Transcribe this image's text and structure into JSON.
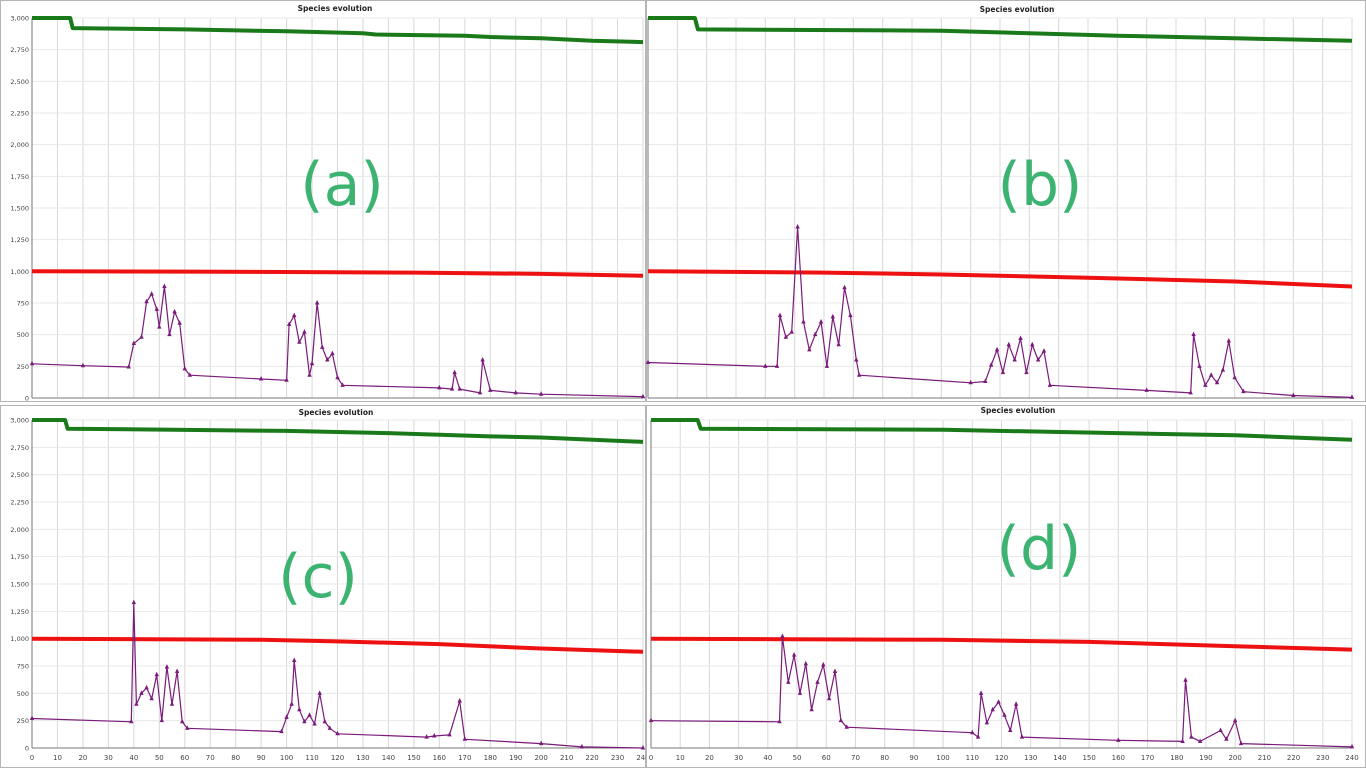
{
  "chart_data": [
    {
      "id": "a",
      "type": "line",
      "title": "Species evolution",
      "panel_label": "(a)",
      "xlim": [
        0,
        240
      ],
      "ylim": [
        0,
        3000
      ],
      "yticks": [
        0,
        250,
        500,
        750,
        1000,
        1250,
        1500,
        1750,
        2000,
        2250,
        2500,
        2750,
        3000
      ],
      "ytick_labels": [
        "0",
        "250",
        "500",
        "750",
        "1,000",
        "1,250",
        "1,500",
        "1,750",
        "2,000",
        "2,250",
        "2,500",
        "2,750",
        "3,000"
      ],
      "xticks": [
        0,
        10,
        20,
        30,
        40,
        50,
        60,
        70,
        80,
        90,
        100,
        110,
        120,
        130,
        140,
        150,
        160,
        170,
        180,
        190,
        200,
        210,
        220,
        230,
        240
      ],
      "grid": true,
      "series": [
        {
          "color": "#1a7a1a",
          "points": [
            [
              0,
              3000
            ],
            [
              15,
              3000
            ],
            [
              16,
              2920
            ],
            [
              60,
              2910
            ],
            [
              100,
              2895
            ],
            [
              130,
              2880
            ],
            [
              135,
              2870
            ],
            [
              170,
              2860
            ],
            [
              180,
              2850
            ],
            [
              200,
              2840
            ],
            [
              220,
              2820
            ],
            [
              240,
              2810
            ]
          ]
        },
        {
          "color": "#ee1111",
          "points": [
            [
              0,
              1000
            ],
            [
              60,
              998
            ],
            [
              100,
              995
            ],
            [
              150,
              990
            ],
            [
              200,
              980
            ],
            [
              240,
              965
            ]
          ]
        },
        {
          "color": "#7a1a7a",
          "points": [
            [
              0,
              270
            ],
            [
              20,
              255
            ],
            [
              38,
              245
            ],
            [
              40,
              430
            ],
            [
              43,
              480
            ],
            [
              45,
              760
            ],
            [
              47,
              820
            ],
            [
              49,
              700
            ],
            [
              50,
              560
            ],
            [
              52,
              880
            ],
            [
              54,
              500
            ],
            [
              56,
              680
            ],
            [
              58,
              590
            ],
            [
              60,
              230
            ],
            [
              62,
              180
            ],
            [
              90,
              150
            ],
            [
              100,
              140
            ],
            [
              101,
              580
            ],
            [
              103,
              650
            ],
            [
              105,
              440
            ],
            [
              107,
              520
            ],
            [
              109,
              180
            ],
            [
              110,
              270
            ],
            [
              112,
              750
            ],
            [
              114,
              400
            ],
            [
              116,
              300
            ],
            [
              118,
              350
            ],
            [
              120,
              160
            ],
            [
              122,
              100
            ],
            [
              160,
              80
            ],
            [
              165,
              70
            ],
            [
              166,
              200
            ],
            [
              168,
              70
            ],
            [
              176,
              40
            ],
            [
              177,
              300
            ],
            [
              180,
              60
            ],
            [
              190,
              40
            ],
            [
              200,
              30
            ],
            [
              240,
              10
            ]
          ]
        }
      ]
    },
    {
      "id": "b",
      "type": "line",
      "title": "Species evolution",
      "panel_label": "(b)",
      "xlim": [
        0,
        240
      ],
      "ylim": [
        0,
        3000
      ],
      "grid": true,
      "series": [
        {
          "color": "#1a7a1a",
          "points": [
            [
              0,
              3000
            ],
            [
              16,
              3000
            ],
            [
              17,
              2910
            ],
            [
              100,
              2900
            ],
            [
              130,
              2880
            ],
            [
              160,
              2860
            ],
            [
              200,
              2840
            ],
            [
              240,
              2820
            ]
          ]
        },
        {
          "color": "#ee1111",
          "points": [
            [
              0,
              1000
            ],
            [
              60,
              990
            ],
            [
              100,
              975
            ],
            [
              150,
              950
            ],
            [
              200,
              920
            ],
            [
              240,
              880
            ]
          ]
        },
        {
          "color": "#7a1a7a",
          "points": [
            [
              0,
              280
            ],
            [
              40,
              250
            ],
            [
              44,
              250
            ],
            [
              45,
              650
            ],
            [
              47,
              480
            ],
            [
              49,
              520
            ],
            [
              51,
              1350
            ],
            [
              53,
              600
            ],
            [
              55,
              380
            ],
            [
              57,
              500
            ],
            [
              59,
              600
            ],
            [
              61,
              250
            ],
            [
              63,
              640
            ],
            [
              65,
              420
            ],
            [
              67,
              870
            ],
            [
              69,
              650
            ],
            [
              71,
              300
            ],
            [
              72,
              180
            ],
            [
              110,
              120
            ],
            [
              115,
              130
            ],
            [
              117,
              260
            ],
            [
              119,
              380
            ],
            [
              121,
              200
            ],
            [
              123,
              420
            ],
            [
              125,
              300
            ],
            [
              127,
              470
            ],
            [
              129,
              200
            ],
            [
              131,
              420
            ],
            [
              133,
              300
            ],
            [
              135,
              370
            ],
            [
              137,
              100
            ],
            [
              170,
              60
            ],
            [
              185,
              40
            ],
            [
              186,
              500
            ],
            [
              188,
              250
            ],
            [
              190,
              100
            ],
            [
              192,
              180
            ],
            [
              194,
              120
            ],
            [
              196,
              220
            ],
            [
              198,
              450
            ],
            [
              200,
              160
            ],
            [
              203,
              50
            ],
            [
              220,
              20
            ],
            [
              240,
              5
            ]
          ]
        }
      ]
    },
    {
      "id": "c",
      "type": "line",
      "title": "Species evolution",
      "panel_label": "(c)",
      "xlim": [
        0,
        240
      ],
      "ylim": [
        0,
        3000
      ],
      "yticks": [
        0,
        250,
        500,
        750,
        1000,
        1250,
        1500,
        1750,
        2000,
        2250,
        2500,
        2750,
        3000
      ],
      "ytick_labels": [
        "0",
        "250",
        "500",
        "750",
        "1,000",
        "1,250",
        "1,500",
        "1,750",
        "2,000",
        "2,250",
        "2,500",
        "2,750",
        "3,000"
      ],
      "xticks": [
        0,
        10,
        20,
        30,
        40,
        50,
        60,
        70,
        80,
        90,
        100,
        110,
        120,
        130,
        140,
        150,
        160,
        170,
        180,
        190,
        200,
        210,
        220,
        230,
        240
      ],
      "xtick_labels": [
        "0",
        "10",
        "20",
        "30",
        "40",
        "50",
        "60",
        "70",
        "80",
        "90",
        "100",
        "110",
        "120",
        "130",
        "140",
        "150",
        "160",
        "170",
        "180",
        "190",
        "200",
        "210",
        "220",
        "230",
        "240"
      ],
      "grid": true,
      "series": [
        {
          "color": "#1a7a1a",
          "points": [
            [
              0,
              3000
            ],
            [
              13,
              3000
            ],
            [
              14,
              2920
            ],
            [
              100,
              2900
            ],
            [
              140,
              2880
            ],
            [
              180,
              2850
            ],
            [
              200,
              2840
            ],
            [
              240,
              2800
            ]
          ]
        },
        {
          "color": "#ee1111",
          "points": [
            [
              0,
              1000
            ],
            [
              90,
              990
            ],
            [
              120,
              975
            ],
            [
              160,
              950
            ],
            [
              200,
              910
            ],
            [
              240,
              880
            ]
          ]
        },
        {
          "color": "#7a1a7a",
          "points": [
            [
              0,
              270
            ],
            [
              39,
              240
            ],
            [
              40,
              1330
            ],
            [
              41,
              400
            ],
            [
              43,
              500
            ],
            [
              45,
              550
            ],
            [
              47,
              450
            ],
            [
              49,
              670
            ],
            [
              51,
              250
            ],
            [
              53,
              740
            ],
            [
              55,
              400
            ],
            [
              57,
              700
            ],
            [
              59,
              240
            ],
            [
              61,
              180
            ],
            [
              98,
              150
            ],
            [
              100,
              280
            ],
            [
              102,
              400
            ],
            [
              103,
              800
            ],
            [
              105,
              350
            ],
            [
              107,
              240
            ],
            [
              109,
              300
            ],
            [
              111,
              220
            ],
            [
              113,
              500
            ],
            [
              115,
              240
            ],
            [
              117,
              180
            ],
            [
              120,
              130
            ],
            [
              155,
              100
            ],
            [
              158,
              110
            ],
            [
              164,
              120
            ],
            [
              168,
              430
            ],
            [
              170,
              80
            ],
            [
              200,
              40
            ],
            [
              216,
              10
            ],
            [
              240,
              0
            ]
          ]
        }
      ]
    },
    {
      "id": "d",
      "type": "line",
      "title": "Species evolution",
      "panel_label": "(d)",
      "xlim": [
        0,
        240
      ],
      "ylim": [
        0,
        3000
      ],
      "xticks": [
        0,
        10,
        20,
        30,
        40,
        50,
        60,
        70,
        80,
        90,
        100,
        110,
        120,
        130,
        140,
        150,
        160,
        170,
        180,
        190,
        200,
        210,
        220,
        230,
        240
      ],
      "xtick_labels": [
        "0",
        "10",
        "20",
        "30",
        "40",
        "50",
        "60",
        "70",
        "80",
        "90",
        "100",
        "110",
        "120",
        "130",
        "140",
        "150",
        "160",
        "170",
        "180",
        "190",
        "200",
        "210",
        "220",
        "230",
        "240"
      ],
      "grid": true,
      "series": [
        {
          "color": "#1a7a1a",
          "points": [
            [
              0,
              3000
            ],
            [
              16,
              3000
            ],
            [
              17,
              2920
            ],
            [
              100,
              2910
            ],
            [
              140,
              2890
            ],
            [
              180,
              2870
            ],
            [
              200,
              2860
            ],
            [
              240,
              2820
            ]
          ]
        },
        {
          "color": "#ee1111",
          "points": [
            [
              0,
              1000
            ],
            [
              100,
              990
            ],
            [
              150,
              970
            ],
            [
              200,
              930
            ],
            [
              240,
              900
            ]
          ]
        },
        {
          "color": "#7a1a7a",
          "points": [
            [
              0,
              250
            ],
            [
              44,
              240
            ],
            [
              45,
              1020
            ],
            [
              47,
              600
            ],
            [
              49,
              850
            ],
            [
              51,
              500
            ],
            [
              53,
              770
            ],
            [
              55,
              350
            ],
            [
              57,
              600
            ],
            [
              59,
              760
            ],
            [
              61,
              450
            ],
            [
              63,
              700
            ],
            [
              65,
              250
            ],
            [
              67,
              190
            ],
            [
              110,
              140
            ],
            [
              112,
              100
            ],
            [
              113,
              500
            ],
            [
              115,
              230
            ],
            [
              117,
              350
            ],
            [
              119,
              420
            ],
            [
              121,
              300
            ],
            [
              123,
              160
            ],
            [
              125,
              400
            ],
            [
              127,
              100
            ],
            [
              160,
              70
            ],
            [
              182,
              60
            ],
            [
              183,
              620
            ],
            [
              185,
              100
            ],
            [
              188,
              60
            ],
            [
              195,
              160
            ],
            [
              197,
              80
            ],
            [
              200,
              250
            ],
            [
              202,
              40
            ],
            [
              240,
              10
            ]
          ]
        }
      ]
    }
  ]
}
